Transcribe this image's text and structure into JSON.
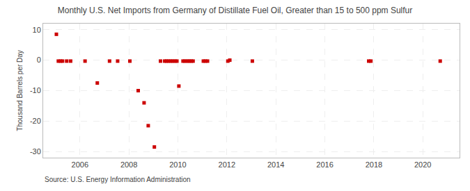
{
  "chart_data": {
    "type": "scatter",
    "title": "Monthly U.S. Net Imports from Germany of Distillate Fuel Oil, Greater than 15 to 500 ppm Sulfur",
    "ylabel": "Thousand Barrels per Day",
    "annotations": [
      "Source: U.S. Energy Information Administration"
    ],
    "color": "#cc0000",
    "marker": "square",
    "grid": true,
    "xlim": [
      2004.5,
      2021.5
    ],
    "ylim": [
      -32,
      12
    ],
    "xticks": [
      2006,
      2008,
      2010,
      2012,
      2014,
      2016,
      2018,
      2020
    ],
    "yticks": [
      -30,
      -20,
      -10,
      0,
      10
    ],
    "x": [
      2005.04,
      2005.12,
      2005.21,
      2005.29,
      2005.46,
      2005.62,
      2006.21,
      2006.71,
      2007.21,
      2007.54,
      2008.04,
      2008.38,
      2008.62,
      2008.79,
      2009.04,
      2009.29,
      2009.46,
      2009.54,
      2009.62,
      2009.71,
      2009.79,
      2009.88,
      2009.96,
      2010.04,
      2010.21,
      2010.29,
      2010.38,
      2010.46,
      2010.54,
      2010.62,
      2011.04,
      2011.12,
      2011.21,
      2012.04,
      2012.12,
      2013.04,
      2017.79,
      2017.88,
      2020.71
    ],
    "values": [
      8.5,
      -0.3,
      -0.3,
      -0.3,
      -0.3,
      -0.3,
      -0.3,
      -7.5,
      -0.3,
      -0.3,
      -0.3,
      -10.0,
      -14.0,
      -21.5,
      -28.5,
      -0.3,
      -0.3,
      -0.3,
      -0.3,
      -0.3,
      -0.3,
      -0.3,
      -0.3,
      -8.5,
      -0.3,
      -0.3,
      -0.3,
      -0.3,
      -0.3,
      -0.3,
      -0.3,
      -0.3,
      -0.3,
      -0.3,
      0.0,
      -0.3,
      -0.3,
      -0.3,
      -0.3
    ]
  }
}
